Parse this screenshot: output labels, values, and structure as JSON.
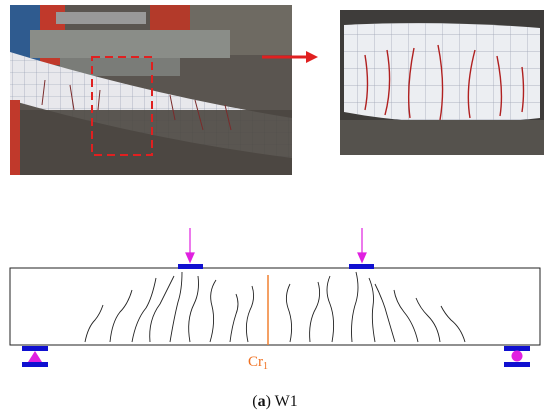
{
  "crack_label": {
    "text": "Cr",
    "subscript": "1"
  },
  "caption": {
    "open": "(",
    "letter": "a",
    "rest": ") W1"
  }
}
